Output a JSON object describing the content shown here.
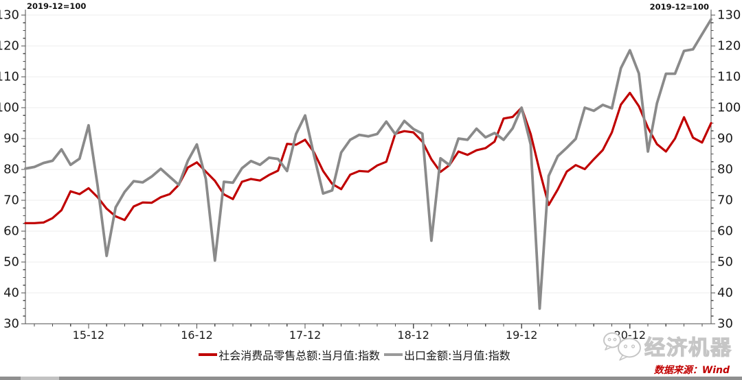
{
  "page": {
    "background": "#ffffff"
  },
  "chart": {
    "index_note_left": "2019-12=100",
    "index_note_right": "2019-12=100",
    "y_axis": {
      "min": 30,
      "max": 130,
      "step": 10,
      "minor_step": 2.5,
      "tick_labels": [
        "30",
        "40",
        "50",
        "60",
        "70",
        "80",
        "90",
        "100",
        "110",
        "120",
        "130"
      ]
    },
    "x_axis": {
      "tick_labels": [
        "15-12",
        "16-12",
        "17-12",
        "18-12",
        "19-12",
        "20-12"
      ],
      "tick_month_indices": [
        7,
        19,
        31,
        43,
        55,
        67
      ]
    },
    "colors": {
      "axis": "#4d4d4d",
      "grid": "#ededed",
      "text": "#1a1a1a"
    }
  },
  "chart_data": {
    "type": "line",
    "title": "",
    "note": "2019-12=100",
    "ylim": [
      30,
      130
    ],
    "grid": "horizontal",
    "legend_position": "bottom",
    "months": [
      "2015-05",
      "2015-06",
      "2015-07",
      "2015-08",
      "2015-09",
      "2015-10",
      "2015-11",
      "2015-12",
      "2016-01",
      "2016-02",
      "2016-03",
      "2016-04",
      "2016-05",
      "2016-06",
      "2016-07",
      "2016-08",
      "2016-09",
      "2016-10",
      "2016-11",
      "2016-12",
      "2017-01",
      "2017-02",
      "2017-03",
      "2017-04",
      "2017-05",
      "2017-06",
      "2017-07",
      "2017-08",
      "2017-09",
      "2017-10",
      "2017-11",
      "2017-12",
      "2018-01",
      "2018-02",
      "2018-03",
      "2018-04",
      "2018-05",
      "2018-06",
      "2018-07",
      "2018-08",
      "2018-09",
      "2018-10",
      "2018-11",
      "2018-12",
      "2019-01",
      "2019-02",
      "2019-03",
      "2019-04",
      "2019-05",
      "2019-06",
      "2019-07",
      "2019-08",
      "2019-09",
      "2019-10",
      "2019-11",
      "2019-12",
      "2020-01",
      "2020-02",
      "2020-03",
      "2020-04",
      "2020-05",
      "2020-06",
      "2020-07",
      "2020-08",
      "2020-09",
      "2020-10",
      "2020-11",
      "2020-12",
      "2021-01",
      "2021-02",
      "2021-03",
      "2021-04",
      "2021-05",
      "2021-06",
      "2021-07",
      "2021-08",
      "2021-09"
    ],
    "series": [
      {
        "name": "社会消费品零售总额:当月值:指数",
        "color": "#C00000",
        "stroke_width": 3.2,
        "values": [
          62.6,
          62.6,
          62.8,
          64.2,
          66.8,
          72.9,
          72.0,
          73.9,
          71.0,
          67.3,
          64.8,
          63.6,
          68.0,
          69.3,
          69.2,
          71.0,
          72.0,
          75.0,
          80.6,
          82.3,
          79.3,
          76.3,
          71.9,
          70.4,
          76.0,
          76.9,
          76.4,
          78.2,
          79.6,
          88.3,
          88.0,
          89.6,
          85.5,
          79.5,
          75.3,
          73.6,
          78.3,
          79.5,
          79.3,
          81.3,
          82.5,
          91.6,
          92.4,
          92.0,
          89.0,
          83.3,
          79.2,
          81.4,
          85.8,
          84.7,
          86.2,
          86.9,
          89.0,
          96.5,
          97.0,
          100.0,
          91.5,
          79.5,
          68.5,
          73.5,
          79.3,
          81.4,
          80.1,
          83.3,
          86.3,
          92.0,
          101.0,
          104.8,
          100.5,
          93.5,
          88.2,
          85.8,
          90.0,
          96.9,
          90.3,
          88.7,
          95.0
        ]
      },
      {
        "name": "出口金额:当月值:指数",
        "color": "#8A8A8A",
        "stroke_width": 3.8,
        "values": [
          80.3,
          80.8,
          82.1,
          82.8,
          86.5,
          81.5,
          83.5,
          94.3,
          74.7,
          52.0,
          67.7,
          72.7,
          76.2,
          75.8,
          77.7,
          80.2,
          77.6,
          75.0,
          82.8,
          88.1,
          76.9,
          50.5,
          76.0,
          75.7,
          80.4,
          82.7,
          81.5,
          83.8,
          83.4,
          79.5,
          91.5,
          97.5,
          84.4,
          72.2,
          73.2,
          85.5,
          89.6,
          91.2,
          90.7,
          91.5,
          95.5,
          91.4,
          95.7,
          93.1,
          91.6,
          56.9,
          83.6,
          81.4,
          90.0,
          89.6,
          93.2,
          90.4,
          91.8,
          89.6,
          93.3,
          100.0,
          88.1,
          34.9,
          77.9,
          84.3,
          87.0,
          89.9,
          100.0,
          99.0,
          100.9,
          99.8,
          112.8,
          118.6,
          111.1,
          85.8,
          101.4,
          111.0,
          111.0,
          118.4,
          118.9,
          123.8,
          128.6
        ]
      }
    ]
  },
  "legend": {
    "items": [
      {
        "label": "社会消费品零售总额:当月值:指数",
        "color": "#C00000"
      },
      {
        "label": "出口金额:当月值:指数",
        "color": "#999999"
      }
    ]
  },
  "watermark": {
    "brand": "经济机器",
    "icon": "wechat-bubbles-icon"
  },
  "footer": {
    "source": "数据来源：Wind",
    "color": "#C00000"
  }
}
